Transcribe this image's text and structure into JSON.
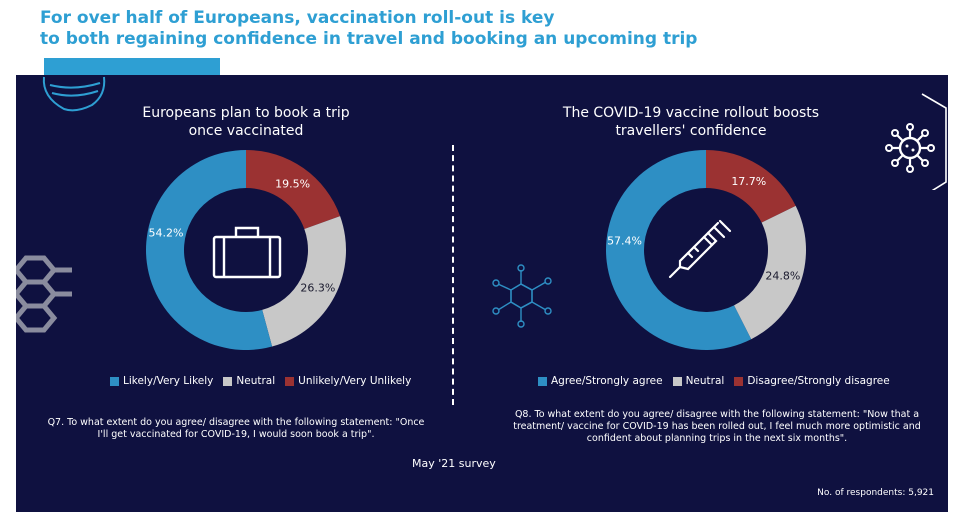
{
  "headline": {
    "line1": "For over half of Europeans, vaccination roll-out is key",
    "line2": "to both regaining confidence in travel and booking an upcoming trip"
  },
  "colors": {
    "background": "#0f1140",
    "blue": "#2e8fc4",
    "grey": "#c8c8c8",
    "red": "#9b3232",
    "headline": "#2e9fd3"
  },
  "chart_data": [
    {
      "type": "pie",
      "title_line1": "Europeans plan to book a trip",
      "title_line2": "once vaccinated",
      "donut": true,
      "center_icon": "suitcase-icon",
      "slices": [
        {
          "label": "Unlikely/Very Unlikely",
          "value": 19.5,
          "display": "19.5%",
          "color": "#9b3232"
        },
        {
          "label": "Neutral",
          "value": 26.3,
          "display": "26.3%",
          "color": "#c8c8c8"
        },
        {
          "label": "Likely/Very Likely",
          "value": 54.2,
          "display": "54.2%",
          "color": "#2e8fc4"
        }
      ],
      "legend": [
        "Likely/Very Likely",
        "Neutral",
        "Unlikely/Very Unlikely"
      ],
      "question": "Q7. To what extent do you agree/ disagree with the following statement: \"Once I'll get vaccinated for COVID-19, I would soon book a trip\"."
    },
    {
      "type": "pie",
      "title_line1": "The COVID-19 vaccine rollout boosts",
      "title_line2": "travellers' confidence",
      "donut": true,
      "center_icon": "syringe-icon",
      "slices": [
        {
          "label": "Disagree/Strongly disagree",
          "value": 17.7,
          "display": "17.7%",
          "color": "#9b3232"
        },
        {
          "label": "Neutral",
          "value": 24.8,
          "display": "24.8%",
          "color": "#c8c8c8"
        },
        {
          "label": "Agree/Strongly agree",
          "value": 57.4,
          "display": "57.4%",
          "color": "#2e8fc4"
        }
      ],
      "legend": [
        "Agree/Strongly agree",
        "Neutral",
        "Disagree/Strongly disagree"
      ],
      "question": "Q8. To what extent do you agree/ disagree with the following statement: \"Now that a treatment/ vaccine for COVID-19 has been rolled out, I feel much more optimistic and confident about planning trips in the next six months\"."
    }
  ],
  "footer": {
    "survey": "May '21 survey",
    "respondents": "No. of respondents: 5,921"
  },
  "decor_icons": [
    "face-mask-icon",
    "virus-icon",
    "hexagon-molecule-icon",
    "molecule-icon"
  ]
}
